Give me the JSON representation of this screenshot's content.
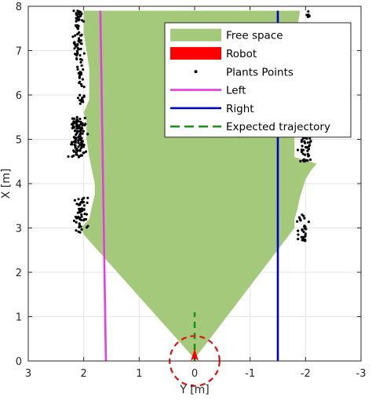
{
  "chart_data": {
    "type": "scatter",
    "title": "",
    "xlabel": "Y [m]",
    "ylabel": "X [m]",
    "xlim": [
      3,
      -3
    ],
    "ylim": [
      0,
      8
    ],
    "x_reversed": true,
    "grid": true,
    "xticks": [
      3,
      2,
      1,
      0,
      -1,
      -2,
      -3
    ],
    "yticks": [
      0,
      1,
      2,
      3,
      4,
      5,
      6,
      7,
      8
    ],
    "legend_position": "top-right",
    "legend": [
      {
        "label": "Free space",
        "style": "patch",
        "color": "#a5c97a"
      },
      {
        "label": "Robot",
        "style": "patch",
        "color": "#ff0000"
      },
      {
        "label": "Plants Points",
        "style": "dot",
        "color": "#000000"
      },
      {
        "label": "Left",
        "style": "line",
        "color": "#e040e0"
      },
      {
        "label": "Right",
        "style": "line",
        "color": "#0000cc"
      },
      {
        "label": "Expected trajectory",
        "style": "dashed",
        "color": "#1f8f1f"
      }
    ],
    "free_space_polygon": [
      [
        0.0,
        0.05
      ],
      [
        2.0,
        2.85
      ],
      [
        2.05,
        3.0
      ],
      [
        1.9,
        3.2
      ],
      [
        1.85,
        3.5
      ],
      [
        1.8,
        3.75
      ],
      [
        1.8,
        4.0
      ],
      [
        1.85,
        4.3
      ],
      [
        1.9,
        4.6
      ],
      [
        1.95,
        5.0
      ],
      [
        1.95,
        5.4
      ],
      [
        2.0,
        5.6
      ],
      [
        1.9,
        5.9
      ],
      [
        1.9,
        6.2
      ],
      [
        1.9,
        6.6
      ],
      [
        1.95,
        7.0
      ],
      [
        2.0,
        7.4
      ],
      [
        2.0,
        7.9
      ],
      [
        -1.9,
        7.9
      ],
      [
        -1.85,
        7.5
      ],
      [
        -1.8,
        7.0
      ],
      [
        -1.75,
        6.5
      ],
      [
        -1.75,
        6.0
      ],
      [
        -1.75,
        5.5
      ],
      [
        -1.8,
        5.0
      ],
      [
        -1.8,
        4.6
      ],
      [
        -2.2,
        4.45
      ],
      [
        -2.1,
        4.3
      ],
      [
        -2.0,
        4.1
      ],
      [
        -1.95,
        3.9
      ],
      [
        -1.9,
        3.7
      ],
      [
        -1.85,
        3.4
      ],
      [
        -1.8,
        3.2
      ],
      [
        -1.8,
        3.0
      ],
      [
        0.0,
        0.05
      ]
    ],
    "plant_clusters": [
      {
        "y": 2.1,
        "x_from": 6.8,
        "x_to": 7.9,
        "spread": 0.09,
        "count": 70
      },
      {
        "y": 2.05,
        "x_from": 5.8,
        "x_to": 6.8,
        "spread": 0.06,
        "count": 30
      },
      {
        "y": 2.1,
        "x_from": 4.6,
        "x_to": 5.5,
        "spread": 0.12,
        "count": 110
      },
      {
        "y": 2.05,
        "x_from": 2.9,
        "x_to": 3.7,
        "spread": 0.1,
        "count": 55
      },
      {
        "y": -2.0,
        "x_from": 4.5,
        "x_to": 5.1,
        "spread": 0.1,
        "count": 40
      },
      {
        "y": -1.95,
        "x_from": 2.7,
        "x_to": 3.3,
        "spread": 0.08,
        "count": 30
      },
      {
        "y": -2.05,
        "x_from": 7.75,
        "x_to": 7.9,
        "spread": 0.04,
        "count": 5
      }
    ],
    "left_line": [
      [
        1.7,
        7.9
      ],
      [
        1.6,
        0.0
      ]
    ],
    "right_line": [
      [
        -1.5,
        7.9
      ],
      [
        -1.5,
        0.0
      ]
    ],
    "expected_trajectory": [
      [
        0.0,
        0.0
      ],
      [
        0.0,
        1.1
      ]
    ],
    "robot": {
      "x": 0.0,
      "y": 0.0,
      "circle_radius": 0.45,
      "arrow_length": 0.28
    }
  }
}
